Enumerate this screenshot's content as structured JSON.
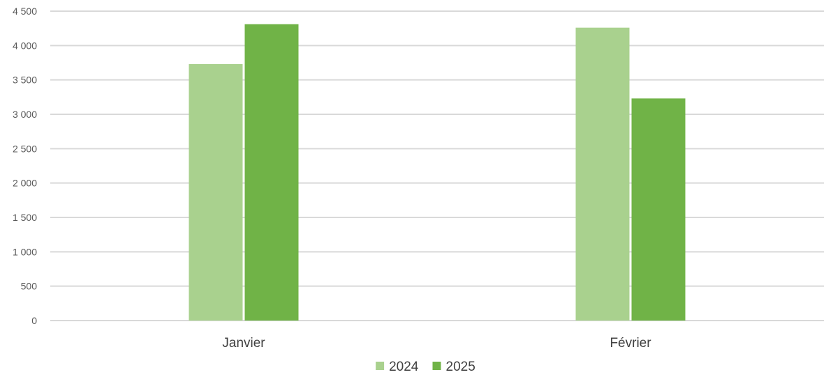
{
  "chart_data": {
    "type": "bar",
    "categories": [
      "Janvier",
      "Février"
    ],
    "series": [
      {
        "name": "2024",
        "values": [
          3730,
          4260
        ],
        "color": "#a9d18e"
      },
      {
        "name": "2025",
        "values": [
          4310,
          3230
        ],
        "color": "#70b347"
      }
    ],
    "y_ticks": [
      "0",
      "500",
      "1 000",
      "1 500",
      "2 000",
      "2 500",
      "3 000",
      "3 500",
      "4 000",
      "4 500"
    ],
    "ylim": [
      0,
      4500
    ],
    "title": "",
    "xlabel": "",
    "ylabel": "",
    "grid": true,
    "legend_position": "bottom"
  }
}
